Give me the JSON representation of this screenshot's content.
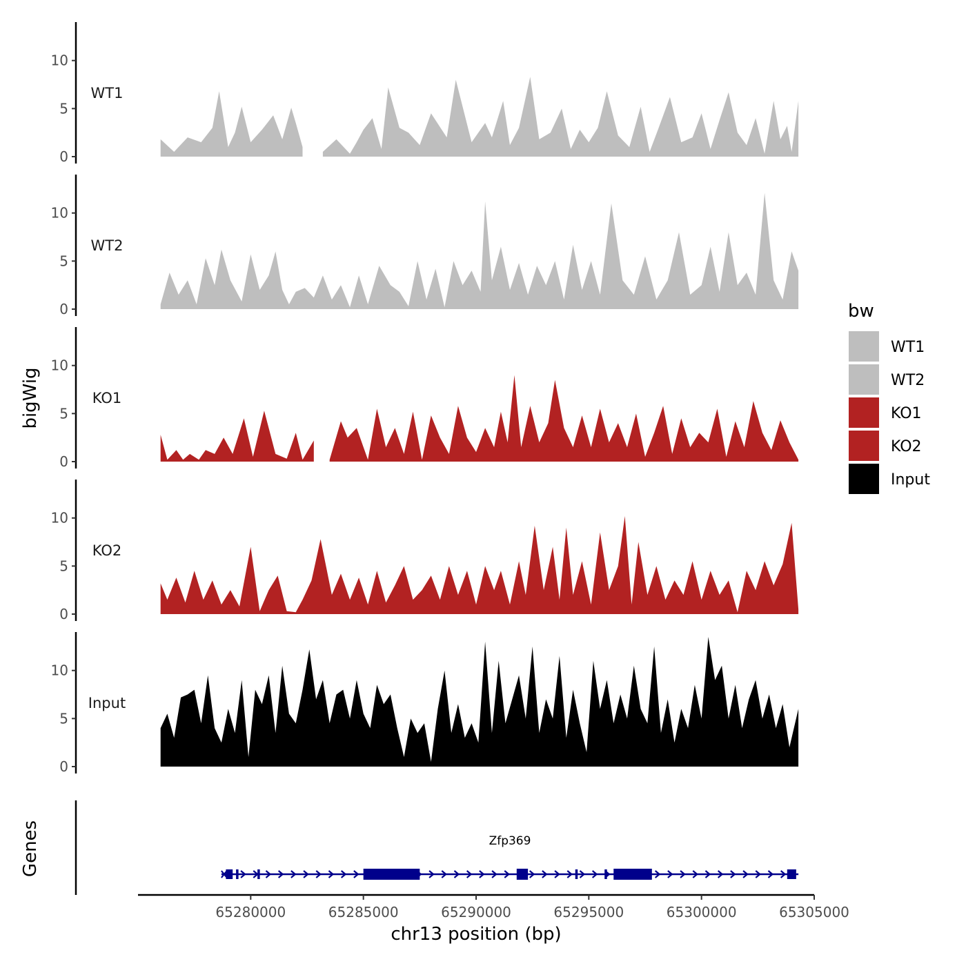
{
  "chart_data": {
    "type": "area",
    "x_axis": {
      "label": "chr13 position (bp)",
      "range": [
        65275000,
        65305000
      ],
      "ticks": [
        65280000,
        65285000,
        65290000,
        65295000,
        65300000,
        65305000
      ],
      "tick_labels": [
        "65280000",
        "65285000",
        "65290000",
        "65295000",
        "65300000",
        "65305000"
      ]
    },
    "y_axis": {
      "label": "bigWig",
      "range": [
        0,
        14
      ],
      "ticks": [
        0,
        5,
        10
      ],
      "tick_labels": [
        "0",
        "5",
        "10"
      ]
    },
    "tracks": [
      {
        "name": "WT1",
        "color": "#BEBEBE",
        "x": [
          65276000,
          65276600,
          65277200,
          65277800,
          65278300,
          65278600,
          65279000,
          65279300,
          65279600,
          65280000,
          65280500,
          65281000,
          65281400,
          65281800,
          65282000,
          65282300,
          65282900,
          65283200,
          65283800,
          65284400,
          65284700,
          65285000,
          65285400,
          65285800,
          65286100,
          65286600,
          65287000,
          65287500,
          65288000,
          65288700,
          65289100,
          65289800,
          65290400,
          65290700,
          65291200,
          65291500,
          65291900,
          65292400,
          65292800,
          65293300,
          65293800,
          65294200,
          65294600,
          65295000,
          65295400,
          65295800,
          65296300,
          65296800,
          65297300,
          65297700,
          65298100,
          65298600,
          65299100,
          65299600,
          65300000,
          65300400,
          65300800,
          65301200,
          65301600,
          65302000,
          65302400,
          65302800,
          65303200,
          65303500,
          65303800,
          65304000,
          65304300
        ],
        "y": [
          1.8,
          0.5,
          2.0,
          1.5,
          3.0,
          6.8,
          1.0,
          2.5,
          5.2,
          1.5,
          2.8,
          4.3,
          1.8,
          5.1,
          3.5,
          1.0,
          null,
          0.5,
          1.8,
          0.3,
          1.5,
          2.8,
          4.0,
          0.8,
          7.2,
          3.0,
          2.5,
          1.2,
          4.5,
          2.0,
          8.0,
          1.5,
          3.5,
          2.0,
          5.8,
          1.2,
          3.0,
          8.3,
          1.8,
          2.5,
          5.0,
          0.8,
          2.8,
          1.5,
          3.0,
          6.8,
          2.2,
          1.0,
          5.2,
          0.5,
          3.0,
          6.2,
          1.5,
          2.0,
          4.5,
          0.8,
          3.8,
          6.7,
          2.5,
          1.2,
          4.0,
          0.3,
          5.8,
          1.8,
          3.2,
          0.5,
          5.8
        ]
      },
      {
        "name": "WT2",
        "color": "#BEBEBE",
        "x": [
          65276000,
          65276400,
          65276800,
          65277200,
          65277600,
          65278000,
          65278400,
          65278700,
          65279100,
          65279600,
          65280000,
          65280400,
          65280800,
          65281100,
          65281400,
          65281700,
          65282000,
          65282400,
          65282800,
          65283200,
          65283600,
          65284000,
          65284400,
          65284800,
          65285200,
          65285700,
          65286200,
          65286600,
          65287000,
          65287400,
          65287800,
          65288200,
          65288600,
          65289000,
          65289400,
          65289800,
          65290200,
          65290400,
          65290700,
          65291100,
          65291500,
          65291900,
          65292300,
          65292700,
          65293100,
          65293500,
          65293900,
          65294300,
          65294700,
          65295100,
          65295500,
          65296000,
          65296500,
          65297000,
          65297500,
          65298000,
          65298500,
          65299000,
          65299500,
          65300000,
          65300400,
          65300800,
          65301200,
          65301600,
          65302000,
          65302400,
          65302800,
          65303200,
          65303600,
          65304000,
          65304300
        ],
        "y": [
          0.5,
          3.8,
          1.5,
          3.0,
          0.5,
          5.3,
          2.5,
          6.2,
          3.0,
          0.8,
          5.7,
          2.0,
          3.5,
          6.0,
          2.0,
          0.5,
          1.8,
          2.2,
          1.2,
          3.5,
          1.0,
          2.5,
          0.2,
          3.5,
          0.5,
          4.5,
          2.5,
          1.8,
          0.3,
          5.0,
          1.0,
          4.2,
          0.2,
          5.0,
          2.5,
          4.0,
          1.8,
          11.2,
          3.0,
          6.5,
          2.0,
          4.8,
          1.5,
          4.5,
          2.5,
          5.0,
          1.0,
          6.7,
          2.0,
          5.0,
          1.5,
          11.0,
          3.0,
          1.5,
          5.5,
          1.0,
          3.0,
          8.0,
          1.5,
          2.5,
          6.5,
          1.8,
          8.0,
          2.5,
          3.8,
          1.5,
          12.1,
          3.0,
          1.0,
          6.0,
          4.0
        ]
      },
      {
        "name": "KO1",
        "color": "#B22222",
        "x": [
          65276000,
          65276300,
          65276700,
          65277000,
          65277300,
          65277700,
          65278000,
          65278400,
          65278800,
          65279200,
          65279700,
          65280100,
          65280600,
          65281100,
          65281600,
          65282000,
          65282300,
          65282800,
          65283100,
          65283500,
          65284000,
          65284300,
          65284700,
          65285200,
          65285600,
          65286000,
          65286400,
          65286800,
          65287200,
          65287600,
          65288000,
          65288400,
          65288800,
          65289200,
          65289600,
          65290000,
          65290400,
          65290800,
          65291100,
          65291400,
          65291700,
          65292000,
          65292400,
          65292800,
          65293200,
          65293500,
          65293900,
          65294300,
          65294700,
          65295100,
          65295500,
          65295900,
          65296300,
          65296700,
          65297100,
          65297500,
          65297900,
          65298300,
          65298700,
          65299100,
          65299500,
          65299900,
          65300300,
          65300700,
          65301100,
          65301500,
          65301900,
          65302300,
          65302700,
          65303100,
          65303500,
          65303900,
          65304300
        ],
        "y": [
          2.8,
          0.2,
          1.2,
          0.2,
          0.8,
          0.2,
          1.2,
          0.8,
          2.5,
          0.8,
          4.5,
          0.5,
          5.3,
          0.8,
          0.3,
          3.0,
          0.2,
          2.2,
          null,
          0.2,
          4.2,
          2.5,
          3.5,
          0.2,
          5.5,
          1.5,
          3.5,
          0.8,
          5.2,
          0.2,
          4.8,
          2.5,
          0.8,
          5.8,
          2.5,
          1.0,
          3.5,
          1.5,
          5.2,
          2.0,
          9.0,
          1.5,
          5.8,
          2.0,
          4.0,
          8.5,
          3.5,
          1.5,
          4.8,
          1.5,
          5.5,
          2.0,
          4.0,
          1.5,
          5.0,
          0.5,
          3.0,
          5.8,
          0.8,
          4.5,
          1.5,
          3.0,
          2.0,
          5.5,
          0.5,
          4.2,
          1.5,
          6.3,
          3.0,
          1.2,
          4.3,
          2.0,
          0.2
        ]
      },
      {
        "name": "KO2",
        "color": "#B22222",
        "x": [
          65276000,
          65276300,
          65276700,
          65277100,
          65277500,
          65277900,
          65278300,
          65278700,
          65279100,
          65279500,
          65280000,
          65280400,
          65280800,
          65281200,
          65281600,
          65282000,
          65282300,
          65282700,
          65283100,
          65283600,
          65284000,
          65284400,
          65284800,
          65285200,
          65285600,
          65286000,
          65286400,
          65286800,
          65287200,
          65287600,
          65288000,
          65288400,
          65288800,
          65289200,
          65289600,
          65290000,
          65290400,
          65290800,
          65291100,
          65291500,
          65291900,
          65292200,
          65292600,
          65293000,
          65293400,
          65293700,
          65294000,
          65294300,
          65294700,
          65295100,
          65295500,
          65295900,
          65296300,
          65296600,
          65296900,
          65297200,
          65297600,
          65298000,
          65298400,
          65298800,
          65299200,
          65299600,
          65300000,
          65300400,
          65300800,
          65301200,
          65301600,
          65302000,
          65302400,
          65302800,
          65303200,
          65303600,
          65304000,
          65304300
        ],
        "y": [
          3.2,
          1.5,
          3.8,
          1.2,
          4.5,
          1.5,
          3.5,
          1.0,
          2.5,
          0.8,
          7.0,
          0.3,
          2.5,
          4.0,
          0.3,
          0.2,
          1.5,
          3.5,
          7.8,
          2.0,
          4.2,
          1.5,
          3.8,
          1.0,
          4.5,
          1.2,
          3.0,
          5.0,
          1.5,
          2.5,
          4.0,
          1.5,
          5.0,
          2.0,
          4.5,
          1.0,
          5.0,
          2.5,
          4.5,
          1.0,
          5.5,
          2.0,
          9.2,
          2.5,
          7.0,
          1.5,
          9.0,
          2.0,
          5.5,
          1.0,
          8.5,
          2.5,
          5.0,
          10.2,
          1.0,
          7.5,
          2.0,
          5.0,
          1.5,
          3.5,
          2.0,
          5.5,
          1.5,
          4.5,
          2.0,
          3.5,
          0.2,
          4.5,
          2.5,
          5.5,
          3.0,
          5.2,
          9.5,
          0.5
        ]
      },
      {
        "name": "Input",
        "color": "#000000",
        "x": [
          65276000,
          65276300,
          65276600,
          65276900,
          65277200,
          65277500,
          65277800,
          65278100,
          65278400,
          65278700,
          65279000,
          65279300,
          65279600,
          65279900,
          65280200,
          65280500,
          65280800,
          65281100,
          65281400,
          65281700,
          65282000,
          65282300,
          65282600,
          65282900,
          65283200,
          65283500,
          65283800,
          65284100,
          65284400,
          65284700,
          65285000,
          65285300,
          65285600,
          65285900,
          65286200,
          65286500,
          65286800,
          65287100,
          65287400,
          65287700,
          65288000,
          65288300,
          65288600,
          65288900,
          65289200,
          65289500,
          65289800,
          65290100,
          65290400,
          65290700,
          65291000,
          65291300,
          65291600,
          65291900,
          65292200,
          65292500,
          65292800,
          65293100,
          65293400,
          65293700,
          65294000,
          65294300,
          65294600,
          65294900,
          65295200,
          65295500,
          65295800,
          65296100,
          65296400,
          65296700,
          65297000,
          65297300,
          65297600,
          65297900,
          65298200,
          65298500,
          65298800,
          65299100,
          65299400,
          65299700,
          65300000,
          65300300,
          65300600,
          65300900,
          65301200,
          65301500,
          65301800,
          65302100,
          65302400,
          65302700,
          65303000,
          65303300,
          65303600,
          65303900,
          65304300
        ],
        "y": [
          4.0,
          5.5,
          3.0,
          7.2,
          7.5,
          8.0,
          4.5,
          9.5,
          4.0,
          2.5,
          6.0,
          3.5,
          9.0,
          1.0,
          8.0,
          6.5,
          9.5,
          3.5,
          10.5,
          5.5,
          4.5,
          8.0,
          12.2,
          7.0,
          9.0,
          4.5,
          7.5,
          8.0,
          5.0,
          9.0,
          5.5,
          4.0,
          8.5,
          6.5,
          7.5,
          4.0,
          1.0,
          5.0,
          3.5,
          4.5,
          0.5,
          6.0,
          10.0,
          3.5,
          6.5,
          3.0,
          4.5,
          2.5,
          13.0,
          3.5,
          11.0,
          4.5,
          7.0,
          9.5,
          5.0,
          12.5,
          3.5,
          7.0,
          5.0,
          11.5,
          3.0,
          8.0,
          4.5,
          1.5,
          11.0,
          6.0,
          9.0,
          4.5,
          7.5,
          5.0,
          10.5,
          6.0,
          4.5,
          12.5,
          3.5,
          7.0,
          2.5,
          6.0,
          4.0,
          8.5,
          5.0,
          13.5,
          9.0,
          10.5,
          5.0,
          8.5,
          4.0,
          7.0,
          9.0,
          5.0,
          7.5,
          4.0,
          6.5,
          2.0,
          6.0
        ]
      }
    ],
    "legend": {
      "title": "bw",
      "position": "right",
      "entries": [
        {
          "label": "WT1",
          "color": "#BEBEBE"
        },
        {
          "label": "WT2",
          "color": "#BEBEBE"
        },
        {
          "label": "KO1",
          "color": "#B22222"
        },
        {
          "label": "KO2",
          "color": "#B22222"
        },
        {
          "label": "Input",
          "color": "#000000"
        }
      ]
    },
    "genes_track": {
      "label": "Genes",
      "color": "#00008B",
      "gene": {
        "name": "Zfp369",
        "strand": "+",
        "start": 65278700,
        "end": 65304300
      },
      "exons": [
        {
          "start": 65278900,
          "end": 65279200,
          "type": "small"
        },
        {
          "start": 65279350,
          "end": 65279450,
          "type": "small"
        },
        {
          "start": 65280300,
          "end": 65280400,
          "type": "small"
        },
        {
          "start": 65285000,
          "end": 65287500,
          "type": "large"
        },
        {
          "start": 65291800,
          "end": 65292300,
          "type": "large"
        },
        {
          "start": 65294400,
          "end": 65294500,
          "type": "small"
        },
        {
          "start": 65295700,
          "end": 65295800,
          "type": "small"
        },
        {
          "start": 65296100,
          "end": 65297800,
          "type": "large"
        },
        {
          "start": 65303800,
          "end": 65304200,
          "type": "small"
        }
      ]
    }
  }
}
